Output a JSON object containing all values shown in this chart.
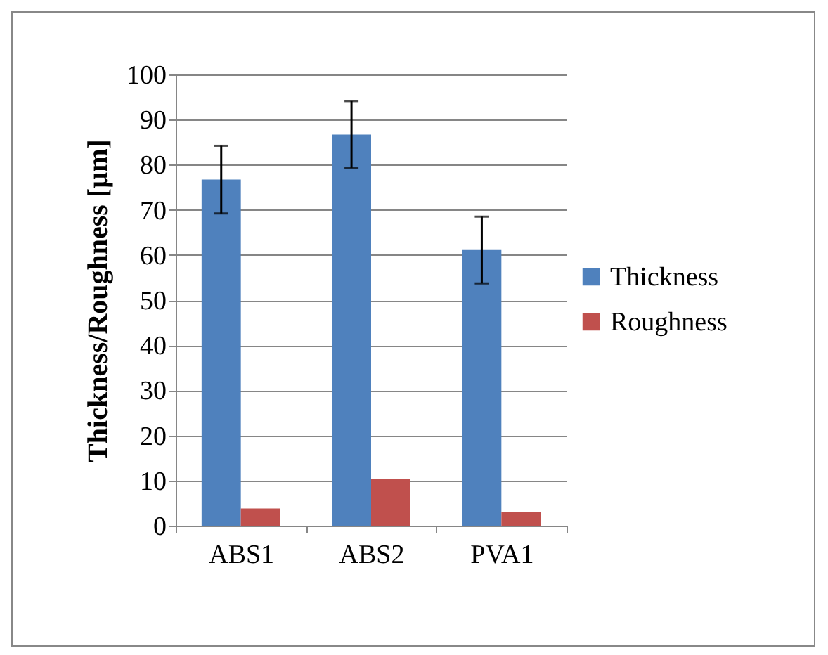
{
  "chart_data": {
    "type": "bar",
    "ylabel": "Thickness/Roughness  [µm]",
    "categories": [
      "ABS1",
      "ABS2",
      "PVA1"
    ],
    "series": [
      {
        "name": "Thickness",
        "color": "#4f81bd",
        "values": [
          76.7,
          86.7,
          61.1
        ],
        "errors": [
          7.5,
          7.4,
          7.4
        ]
      },
      {
        "name": "Roughness",
        "color": "#c0504d",
        "values": [
          3.8,
          10.3,
          3.0
        ]
      }
    ],
    "ylim": [
      0,
      100
    ],
    "yticks": [
      0,
      10,
      20,
      30,
      40,
      50,
      60,
      70,
      80,
      90,
      100
    ],
    "grid": "y",
    "legend": "right"
  }
}
